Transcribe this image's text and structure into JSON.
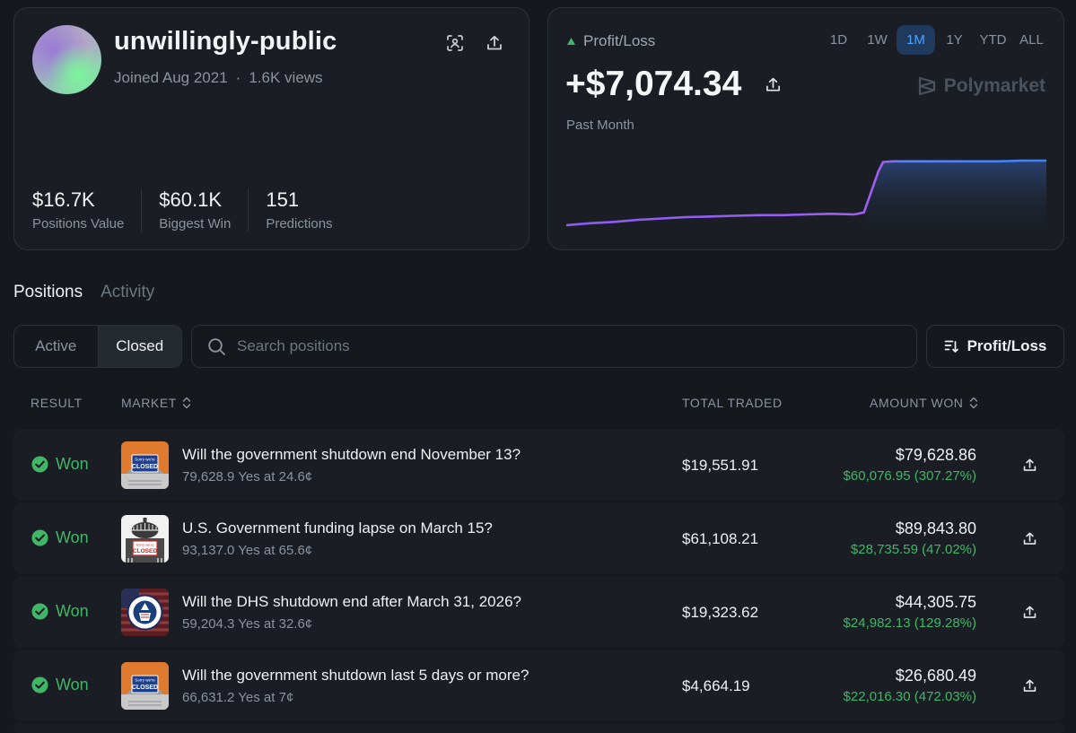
{
  "profile": {
    "username": "unwillingly-public",
    "joined": "Joined Aug 2021",
    "separator": "·",
    "views": "1.6K views",
    "stats": [
      {
        "value": "$16.7K",
        "label": "Positions Value"
      },
      {
        "value": "$60.1K",
        "label": "Biggest Win"
      },
      {
        "value": "151",
        "label": "Predictions"
      }
    ]
  },
  "pnl": {
    "label": "Profit/Loss",
    "value": "+$7,074.34",
    "period": "Past Month",
    "brand": "Polymarket",
    "ranges": [
      "1D",
      "1W",
      "1M",
      "1Y",
      "YTD",
      "ALL"
    ],
    "active_range": "1M",
    "colors": {
      "line_start": "#8b5cf6",
      "line_end": "#3b82f6",
      "up_arrow": "#3fb766"
    }
  },
  "chart_data": {
    "type": "line",
    "x": [
      0,
      5,
      10,
      15,
      20,
      25,
      30,
      35,
      40,
      45,
      50,
      55,
      60,
      62,
      65,
      66,
      68,
      70,
      75,
      80,
      85,
      90,
      95,
      100
    ],
    "values": [
      0.0,
      0.3,
      0.5,
      0.8,
      1.0,
      1.2,
      1.3,
      1.4,
      1.5,
      1.5,
      1.6,
      1.7,
      1.6,
      1.9,
      8.0,
      9.4,
      9.5,
      9.5,
      9.5,
      9.5,
      9.5,
      9.5,
      9.6,
      9.6
    ],
    "title": "",
    "xlabel": "",
    "ylabel": "",
    "grid": false
  },
  "tabs": [
    {
      "label": "Positions",
      "active": true
    },
    {
      "label": "Activity",
      "active": false
    }
  ],
  "filter": {
    "segments": [
      {
        "label": "Active",
        "active": false
      },
      {
        "label": "Closed",
        "active": true
      }
    ],
    "search_placeholder": "Search positions",
    "sort_label": "Profit/Loss"
  },
  "table": {
    "headers": {
      "result": "RESULT",
      "market": "MARKET",
      "total_traded": "TOTAL TRADED",
      "amount_won": "AMOUNT WON"
    },
    "rows": [
      {
        "result": "Won",
        "title": "Will the government shutdown end November 13?",
        "sub": "79,628.9 Yes at 24.6¢",
        "traded": "$19,551.91",
        "won": "$79,628.86",
        "gain": "$60,076.95 (307.27%)",
        "thumb": "closed-sign-orange"
      },
      {
        "result": "Won",
        "title": "U.S. Government funding lapse on March 15?",
        "sub": "93,137.0 Yes at 65.6¢",
        "traded": "$61,108.21",
        "won": "$89,843.80",
        "gain": "$28,735.59 (47.02%)",
        "thumb": "capitol-closed"
      },
      {
        "result": "Won",
        "title": "Will the DHS shutdown end after March 31, 2026?",
        "sub": "59,204.3 Yes at 32.6¢",
        "traded": "$19,323.62",
        "won": "$44,305.75",
        "gain": "$24,982.13 (129.28%)",
        "thumb": "dhs-seal"
      },
      {
        "result": "Won",
        "title": "Will the government shutdown last 5 days or more?",
        "sub": "66,631.2 Yes at 7¢",
        "traded": "$4,664.19",
        "won": "$26,680.49",
        "gain": "$22,016.30 (472.03%)",
        "thumb": "closed-sign-orange"
      }
    ]
  },
  "thumb_texts": {
    "closed": "CLOSED",
    "sorry": "Sorry we're"
  }
}
